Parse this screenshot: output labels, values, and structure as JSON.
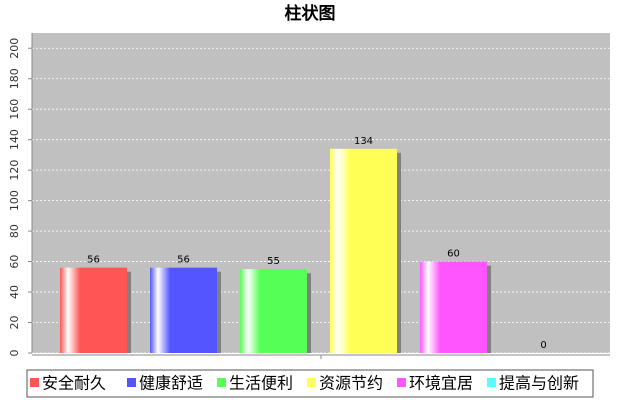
{
  "chart_data": {
    "type": "bar",
    "title": "柱状图",
    "categories": [
      null
    ],
    "series": [
      {
        "name": "安全耐久",
        "color": "#ff5555",
        "values": [
          56
        ]
      },
      {
        "name": "健康舒适",
        "color": "#5555ff",
        "values": [
          56
        ]
      },
      {
        "name": "生活便利",
        "color": "#55ff55",
        "values": [
          55
        ]
      },
      {
        "name": "资源节约",
        "color": "#ffff55",
        "values": [
          134
        ]
      },
      {
        "name": "环境宜居",
        "color": "#ff55ff",
        "values": [
          60
        ]
      },
      {
        "name": "提高与创新",
        "color": "#55ffff",
        "values": [
          0
        ]
      }
    ],
    "ylim": [
      0,
      210
    ],
    "yticks": [
      0,
      20,
      40,
      60,
      80,
      100,
      120,
      140,
      160,
      180,
      200
    ],
    "grid": true,
    "legend": "bottom",
    "value_labels_shown": true
  }
}
